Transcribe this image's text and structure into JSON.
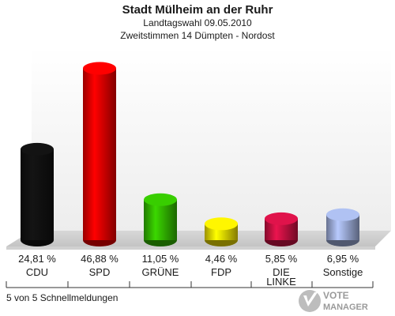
{
  "header": {
    "title": "Stadt Mülheim an der Ruhr",
    "subtitle": "Landtagswahl 09.05.2010",
    "subtitle2": "Zweitstimmen 14 Dümpten - Nordost"
  },
  "chart_data": {
    "type": "bar",
    "categories": [
      "CDU",
      "SPD",
      "GRÜNE",
      "FDP",
      "DIE LINKE",
      "Sonstige"
    ],
    "values": [
      24.81,
      46.88,
      11.05,
      4.46,
      5.85,
      6.95
    ],
    "value_labels": [
      "24,81 %",
      "46,88 %",
      "11,05 %",
      "4,46 %",
      "5,85 %",
      "6,95 %"
    ],
    "colors": [
      "#111111",
      "#ee0000",
      "#33bb00",
      "#f2e000",
      "#cc1144",
      "#a0b0dd"
    ],
    "ylim": [
      0,
      50
    ],
    "grid": false,
    "legend": "none"
  },
  "footer": {
    "status": "5 von 5 Schnellmeldungen",
    "logo_text": "VOTE MANAGER"
  }
}
